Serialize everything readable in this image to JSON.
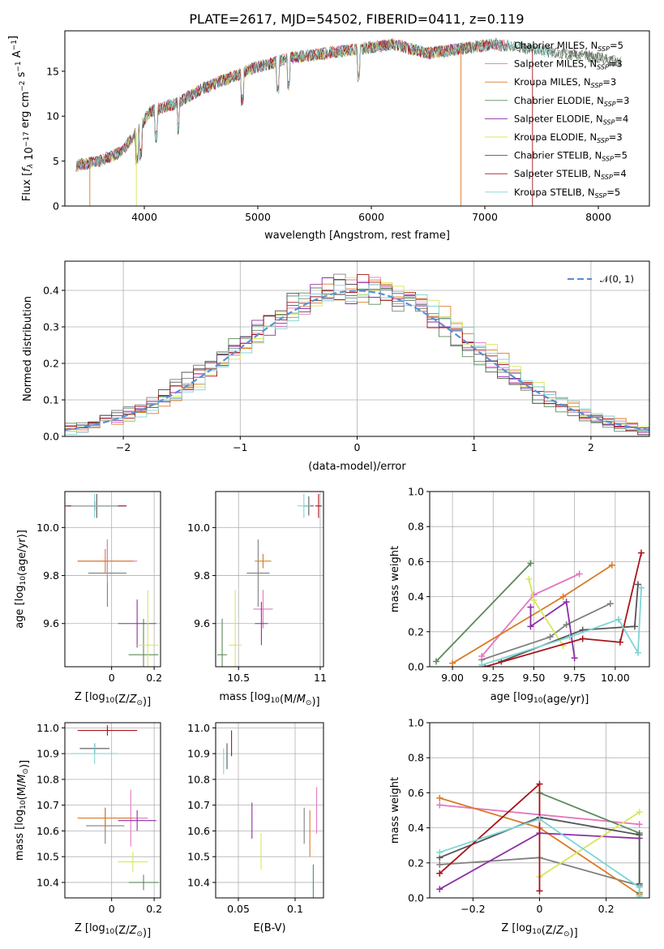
{
  "title": "PLATE=2617, MJD=54502, FIBERID=0411, z=0.119",
  "colors": [
    "#808080",
    "#e377c2",
    "#d97b27",
    "#5c8a5a",
    "#8e2ea6",
    "#d8e65a",
    "#555555",
    "#a8141a",
    "#7fd4d4"
  ],
  "chart_data": [
    {
      "type": "line",
      "id": "spectrum",
      "xlabel": "wavelength [Angstrom, rest frame]",
      "ylabel": "Flux [f_λ 10^-17 erg cm^-2 s^-1 A^-1]",
      "xlim": [
        3300,
        8450
      ],
      "ylim": [
        0,
        19.5
      ],
      "xticks": [
        4000,
        5000,
        6000,
        7000,
        8000
      ],
      "yticks": [
        0,
        5,
        10,
        15
      ],
      "legend_position": "right",
      "legend": [
        {
          "label": "Chabrier MILES, N",
          "sub": "SSP",
          "val": "=5"
        },
        {
          "label": "Salpeter MILES, N",
          "sub": "SSP",
          "val": "=3"
        },
        {
          "label": "Kroupa MILES, N",
          "sub": "SSP",
          "val": "=3"
        },
        {
          "label": "Chabrier ELODIE, N",
          "sub": "SSP",
          "val": "=3"
        },
        {
          "label": "Salpeter ELODIE, N",
          "sub": "SSP",
          "val": "=4"
        },
        {
          "label": "Kroupa ELODIE, N",
          "sub": "SSP",
          "val": "=3"
        },
        {
          "label": "Chabrier STELIB, N",
          "sub": "SSP",
          "val": "=5"
        },
        {
          "label": "Salpeter STELIB, N",
          "sub": "SSP",
          "val": "=4"
        },
        {
          "label": "Kroupa STELIB, N",
          "sub": "SSP",
          "val": "=5"
        }
      ],
      "continuum": {
        "x": [
          3400,
          3600,
          3800,
          3950,
          4050,
          4300,
          4500,
          4800,
          5000,
          5300,
          5600,
          5900,
          6200,
          6500,
          6800,
          7100,
          7400,
          7700,
          8000,
          8200
        ],
        "y": [
          4.5,
          5.0,
          6.0,
          8.5,
          10.5,
          11.5,
          13.0,
          14.5,
          15.5,
          16.5,
          17.0,
          17.5,
          18.0,
          17.0,
          17.5,
          18.0,
          17.5,
          17.0,
          16.5,
          16.0
        ]
      }
    },
    {
      "type": "step",
      "id": "residuals",
      "xlabel": "(data-model)/error",
      "ylabel": "Normed distribution",
      "xlim": [
        -2.5,
        2.5
      ],
      "ylim": [
        0,
        0.48
      ],
      "xticks": [
        -2,
        -1,
        0,
        1,
        2
      ],
      "yticks": [
        0.0,
        0.1,
        0.2,
        0.3,
        0.4
      ],
      "legend_position": "top-right",
      "gauss_label": "𝒩(0, 1)",
      "gauss_color": "#5b8fd6"
    },
    {
      "type": "errorbar",
      "id": "z-age",
      "xlabel": "Z [log10(Z/Z⊙)]",
      "ylabel": "age [log10(age/yr)]",
      "xlim": [
        -0.22,
        0.23
      ],
      "ylim": [
        9.42,
        10.15
      ],
      "xticks": [
        0.0,
        0.2
      ],
      "yticks": [
        9.6,
        9.8,
        10.0
      ],
      "points": [
        {
          "x": -0.02,
          "y": 9.81,
          "xerr": 0.09,
          "yerr": 0.14,
          "c": 0
        },
        {
          "x": -0.02,
          "y": 9.86,
          "xerr": 0.14,
          "yerr": 0.09,
          "c": 1
        },
        {
          "x": -0.03,
          "y": 9.86,
          "xerr": 0.13,
          "yerr": 0.05,
          "c": 2
        },
        {
          "x": 0.15,
          "y": 9.47,
          "xerr": 0.07,
          "yerr": 0.15,
          "c": 3
        },
        {
          "x": 0.12,
          "y": 9.6,
          "xerr": 0.09,
          "yerr": 0.1,
          "c": 4
        },
        {
          "x": 0.17,
          "y": 9.51,
          "xerr": 0.05,
          "yerr": 0.23,
          "c": 5
        },
        {
          "x": -0.07,
          "y": 10.09,
          "xerr": 0.14,
          "yerr": 0.05,
          "c": 6
        },
        {
          "x": -0.08,
          "y": 10.09,
          "xerr": 0.15,
          "yerr": 0.02,
          "c": 7
        },
        {
          "x": -0.08,
          "y": 10.09,
          "xerr": 0.11,
          "yerr": 0.05,
          "c": 8
        }
      ]
    },
    {
      "type": "errorbar",
      "id": "mass-age",
      "xlabel": "mass [log10(M/M⊙)]",
      "ylabel": "",
      "xlim": [
        10.36,
        11.02
      ],
      "ylim": [
        9.42,
        10.15
      ],
      "xticks": [
        10.5,
        11.0
      ],
      "yticks": [
        9.6,
        9.8,
        10.0
      ],
      "points": [
        {
          "x": 10.62,
          "y": 9.81,
          "xerr": 0.07,
          "yerr": 0.14,
          "c": 0
        },
        {
          "x": 10.65,
          "y": 9.66,
          "xerr": 0.06,
          "yerr": 0.08,
          "c": 1
        },
        {
          "x": 10.65,
          "y": 9.86,
          "xerr": 0.05,
          "yerr": 0.03,
          "c": 2
        },
        {
          "x": 10.4,
          "y": 9.47,
          "xerr": 0.03,
          "yerr": 0.15,
          "c": 3
        },
        {
          "x": 10.64,
          "y": 9.6,
          "xerr": 0.04,
          "yerr": 0.09,
          "c": 4
        },
        {
          "x": 10.48,
          "y": 9.51,
          "xerr": 0.04,
          "yerr": 0.23,
          "c": 5
        },
        {
          "x": 10.93,
          "y": 10.09,
          "xerr": 0.03,
          "yerr": 0.04,
          "c": 6
        },
        {
          "x": 10.99,
          "y": 10.09,
          "xerr": 0.02,
          "yerr": 0.05,
          "c": 7
        },
        {
          "x": 10.9,
          "y": 10.09,
          "xerr": 0.04,
          "yerr": 0.05,
          "c": 8
        }
      ]
    },
    {
      "type": "line",
      "id": "weight-age",
      "xlabel": "age [log10(age/yr)]",
      "ylabel": "mass weight",
      "xlim": [
        8.86,
        10.21
      ],
      "ylim": [
        0,
        1.0
      ],
      "xticks": [
        9.0,
        9.25,
        9.5,
        9.75,
        10.0
      ],
      "xtick_labels": [
        "9.00",
        "9.25",
        "9.50",
        "9.75",
        "10.00"
      ],
      "yticks": [
        0.0,
        0.2,
        0.4,
        0.6,
        0.8,
        1.0
      ],
      "series": [
        {
          "c": 0,
          "x": [
            9.18,
            9.6,
            9.7,
            9.97
          ],
          "y": [
            0.04,
            0.17,
            0.24,
            0.36
          ]
        },
        {
          "c": 1,
          "x": [
            9.18,
            9.5,
            9.78
          ],
          "y": [
            0.06,
            0.41,
            0.53
          ]
        },
        {
          "c": 2,
          "x": [
            9.0,
            9.68,
            9.98
          ],
          "y": [
            0.02,
            0.4,
            0.58
          ]
        },
        {
          "c": 3,
          "x": [
            8.9,
            9.48
          ],
          "y": [
            0.03,
            0.59
          ]
        },
        {
          "c": 4,
          "x": [
            9.48,
            9.48,
            9.7,
            9.75
          ],
          "y": [
            0.34,
            0.23,
            0.37,
            0.05
          ]
        },
        {
          "c": 5,
          "x": [
            9.47,
            9.5,
            9.68
          ],
          "y": [
            0.5,
            0.38,
            0.12
          ]
        },
        {
          "c": 6,
          "x": [
            9.3,
            9.8,
            10.12,
            10.14
          ],
          "y": [
            0.03,
            0.21,
            0.23,
            0.47
          ]
        },
        {
          "c": 7,
          "x": [
            9.2,
            9.8,
            10.03,
            10.16
          ],
          "y": [
            0.0,
            0.16,
            0.14,
            0.65
          ]
        },
        {
          "c": 8,
          "x": [
            9.18,
            9.72,
            10.02,
            10.14,
            10.16
          ],
          "y": [
            0.01,
            0.17,
            0.27,
            0.08,
            0.45
          ]
        }
      ]
    },
    {
      "type": "errorbar",
      "id": "z-mass",
      "xlabel": "Z [log10(Z/Z⊙)]",
      "ylabel": "mass [log10(M/M⊙)]",
      "xlim": [
        -0.22,
        0.23
      ],
      "ylim": [
        10.34,
        11.02
      ],
      "xticks": [
        0.0,
        0.2
      ],
      "yticks": [
        10.4,
        10.5,
        10.6,
        10.7,
        10.8,
        10.9,
        11.0
      ],
      "points": [
        {
          "x": -0.03,
          "y": 10.62,
          "xerr": 0.09,
          "yerr": 0.07,
          "c": 0
        },
        {
          "x": 0.09,
          "y": 10.65,
          "xerr": 0.08,
          "yerr": 0.11,
          "c": 1
        },
        {
          "x": -0.03,
          "y": 10.65,
          "xerr": 0.13,
          "yerr": 0.04,
          "c": 2
        },
        {
          "x": 0.15,
          "y": 10.4,
          "xerr": 0.07,
          "yerr": 0.03,
          "c": 3
        },
        {
          "x": 0.12,
          "y": 10.64,
          "xerr": 0.09,
          "yerr": 0.04,
          "c": 4
        },
        {
          "x": 0.1,
          "y": 10.48,
          "xerr": 0.07,
          "yerr": 0.04,
          "c": 5
        },
        {
          "x": -0.08,
          "y": 10.92,
          "xerr": 0.07,
          "yerr": 0.02,
          "c": 6
        },
        {
          "x": -0.02,
          "y": 10.99,
          "xerr": 0.14,
          "yerr": 0.02,
          "c": 7
        },
        {
          "x": -0.08,
          "y": 10.9,
          "xerr": 0.11,
          "yerr": 0.04,
          "c": 8
        }
      ]
    },
    {
      "type": "errorbar",
      "id": "ebv-mass",
      "xlabel": "E(B-V)",
      "ylabel": "",
      "xlim": [
        0.03,
        0.125
      ],
      "ylim": [
        10.34,
        11.02
      ],
      "xticks": [
        0.05,
        0.1
      ],
      "yticks": [
        10.4,
        10.5,
        10.6,
        10.7,
        10.8,
        10.9,
        11.0
      ],
      "points": [
        {
          "x": 0.108,
          "y": 10.62,
          "xerr": 0.0,
          "yerr": 0.07,
          "c": 0
        },
        {
          "x": 0.119,
          "y": 10.68,
          "xerr": 0.0,
          "yerr": 0.09,
          "c": 1
        },
        {
          "x": 0.113,
          "y": 10.59,
          "xerr": 0.0,
          "yerr": 0.09,
          "c": 2
        },
        {
          "x": 0.116,
          "y": 10.4,
          "xerr": 0.0,
          "yerr": 0.07,
          "c": 3
        },
        {
          "x": 0.062,
          "y": 10.64,
          "xerr": 0.0,
          "yerr": 0.07,
          "c": 4
        },
        {
          "x": 0.07,
          "y": 10.52,
          "xerr": 0.0,
          "yerr": 0.07,
          "c": 5
        },
        {
          "x": 0.04,
          "y": 10.89,
          "xerr": 0.0,
          "yerr": 0.05,
          "c": 6
        },
        {
          "x": 0.044,
          "y": 10.94,
          "xerr": 0.0,
          "yerr": 0.05,
          "c": 7
        },
        {
          "x": 0.037,
          "y": 10.87,
          "xerr": 0.0,
          "yerr": 0.05,
          "c": 8
        }
      ]
    },
    {
      "type": "line",
      "id": "weight-z",
      "xlabel": "Z [log10(Z/Z⊙)]",
      "ylabel": "mass weight",
      "xlim": [
        -0.33,
        0.33
      ],
      "ylim": [
        0,
        1.0
      ],
      "xticks": [
        -0.2,
        0.0,
        0.2
      ],
      "yticks": [
        0.0,
        0.2,
        0.4,
        0.6,
        0.8,
        1.0
      ],
      "series": [
        {
          "c": 0,
          "x": [
            -0.3,
            0.0,
            0.3
          ],
          "y": [
            0.19,
            0.23,
            0.07
          ]
        },
        {
          "c": 1,
          "x": [
            -0.3,
            0.3
          ],
          "y": [
            0.53,
            0.42
          ]
        },
        {
          "c": 2,
          "x": [
            -0.3,
            0.0,
            0.3
          ],
          "y": [
            0.57,
            0.4,
            0.02
          ]
        },
        {
          "c": 3,
          "x": [
            0.0,
            0.3,
            0.3
          ],
          "y": [
            0.6,
            0.37,
            0.03
          ]
        },
        {
          "c": 4,
          "x": [
            -0.3,
            0.0,
            0.3
          ],
          "y": [
            0.05,
            0.37,
            0.34
          ]
        },
        {
          "c": 5,
          "x": [
            0.0,
            0.3
          ],
          "y": [
            0.12,
            0.49
          ]
        },
        {
          "c": 6,
          "x": [
            -0.3,
            0.0,
            0.3,
            0.3
          ],
          "y": [
            0.23,
            0.46,
            0.36,
            0.08
          ]
        },
        {
          "c": 7,
          "x": [
            -0.3,
            0.0,
            0.0
          ],
          "y": [
            0.14,
            0.65,
            0.04
          ]
        },
        {
          "c": 8,
          "x": [
            -0.3,
            0.0,
            0.3,
            0.3
          ],
          "y": [
            0.26,
            0.45,
            0.06,
            0.01
          ]
        }
      ]
    }
  ]
}
